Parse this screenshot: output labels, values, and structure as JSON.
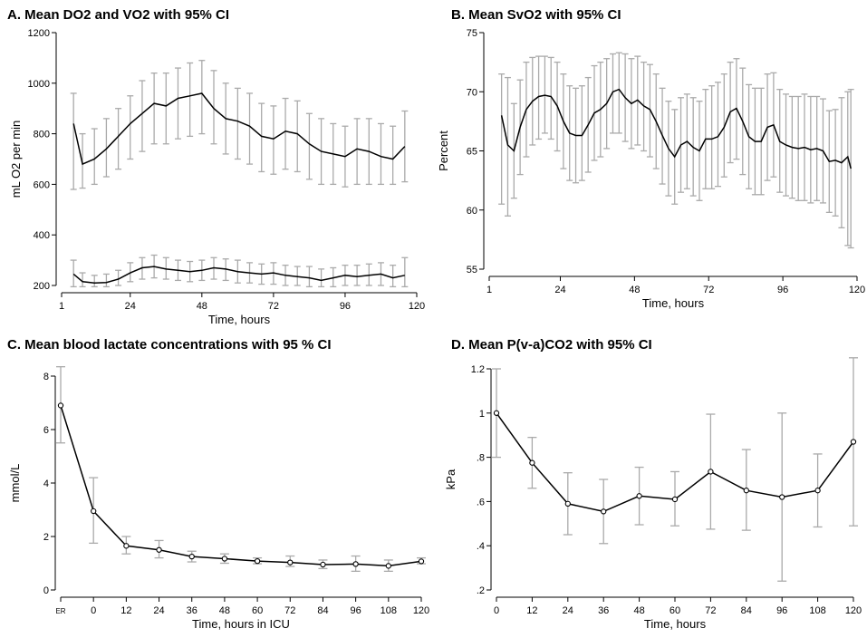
{
  "panels": {
    "a": {
      "title": "A. Mean DO2 and VO2 with 95% CI"
    },
    "b": {
      "title": "B. Mean SvO2 with 95% CI"
    },
    "c": {
      "title": "C. Mean blood lactate concentrations with 95 % CI"
    },
    "d": {
      "title": "D. Mean P(v-a)CO2 with 95% CI"
    }
  },
  "chart_data": [
    {
      "id": "a",
      "type": "line",
      "title": "A. Mean DO2 and VO2 with 95% CI",
      "xlabel": "Time, hours",
      "ylabel": "mL O2 per min",
      "xlim": [
        1,
        120
      ],
      "ylim": [
        200,
        1200
      ],
      "xticks": [
        1,
        24,
        48,
        72,
        96,
        120
      ],
      "yticks": [
        200,
        400,
        600,
        800,
        1000,
        1200
      ],
      "grid": false,
      "series": [
        {
          "x": [
            5,
            8,
            12,
            16,
            20,
            24,
            28,
            32,
            36,
            40,
            44,
            48,
            52,
            56,
            60,
            64,
            68,
            72,
            76,
            80,
            84,
            88,
            92,
            96,
            100,
            104,
            108,
            112,
            116
          ],
          "y": [
            840,
            680,
            700,
            740,
            790,
            840,
            880,
            920,
            910,
            940,
            950,
            960,
            900,
            860,
            850,
            830,
            790,
            780,
            810,
            800,
            760,
            730,
            720,
            710,
            740,
            730,
            710,
            700,
            750
          ],
          "lower": [
            580,
            585,
            600,
            630,
            660,
            700,
            730,
            760,
            760,
            780,
            790,
            800,
            760,
            720,
            700,
            680,
            650,
            640,
            660,
            650,
            620,
            600,
            600,
            590,
            600,
            600,
            600,
            600,
            610
          ],
          "upper": [
            960,
            800,
            820,
            860,
            900,
            950,
            1010,
            1040,
            1040,
            1060,
            1080,
            1090,
            1050,
            1000,
            980,
            960,
            920,
            910,
            940,
            930,
            880,
            860,
            840,
            830,
            860,
            860,
            840,
            830,
            890
          ]
        },
        {
          "x": [
            5,
            8,
            12,
            16,
            20,
            24,
            28,
            32,
            36,
            40,
            44,
            48,
            52,
            56,
            60,
            64,
            68,
            72,
            76,
            80,
            84,
            88,
            92,
            96,
            100,
            104,
            108,
            112,
            116
          ],
          "y": [
            245,
            215,
            210,
            212,
            225,
            250,
            270,
            275,
            265,
            260,
            255,
            260,
            270,
            265,
            255,
            250,
            245,
            250,
            240,
            235,
            230,
            220,
            230,
            240,
            235,
            240,
            245,
            230,
            240
          ],
          "lower": [
            195,
            195,
            195,
            195,
            200,
            215,
            225,
            230,
            225,
            220,
            215,
            220,
            225,
            220,
            210,
            210,
            205,
            205,
            200,
            200,
            195,
            195,
            195,
            200,
            200,
            200,
            200,
            195,
            195
          ],
          "upper": [
            300,
            250,
            240,
            245,
            260,
            290,
            310,
            320,
            310,
            300,
            295,
            300,
            310,
            305,
            300,
            290,
            285,
            290,
            280,
            275,
            275,
            265,
            270,
            280,
            280,
            285,
            290,
            280,
            310
          ]
        }
      ]
    },
    {
      "id": "b",
      "type": "line",
      "title": "B. Mean SvO2 with 95% CI",
      "xlabel": "Time, hours",
      "ylabel": "Percent",
      "xlim": [
        1,
        120
      ],
      "ylim": [
        55,
        75
      ],
      "xticks": [
        1,
        24,
        48,
        72,
        96,
        120
      ],
      "yticks": [
        55,
        60,
        65,
        70,
        75
      ],
      "grid": false,
      "series": [
        {
          "x": [
            5,
            7,
            9,
            11,
            13,
            15,
            17,
            19,
            21,
            23,
            25,
            27,
            29,
            31,
            33,
            35,
            37,
            39,
            41,
            43,
            45,
            47,
            49,
            51,
            53,
            55,
            57,
            59,
            61,
            63,
            65,
            67,
            69,
            71,
            73,
            75,
            77,
            79,
            81,
            83,
            85,
            87,
            89,
            91,
            93,
            95,
            97,
            99,
            101,
            103,
            105,
            107,
            109,
            111,
            113,
            115,
            117,
            118
          ],
          "y": [
            68,
            65.5,
            65,
            67,
            68.5,
            69.2,
            69.6,
            69.7,
            69.6,
            68.8,
            67.5,
            66.5,
            66.3,
            66.3,
            67.2,
            68.2,
            68.5,
            69,
            70,
            70.2,
            69.5,
            69,
            69.3,
            68.8,
            68.5,
            67.5,
            66.3,
            65.2,
            64.5,
            65.5,
            65.8,
            65.3,
            65,
            66,
            66,
            66.2,
            67,
            68.3,
            68.6,
            67.5,
            66.2,
            65.8,
            65.8,
            67,
            67.2,
            65.8,
            65.5,
            65.3,
            65.2,
            65.3,
            65.1,
            65.2,
            65,
            64.1,
            64.2,
            64,
            64.5,
            63.5
          ],
          "lower": [
            60.5,
            59.5,
            61,
            63,
            64.5,
            65.5,
            66,
            66.5,
            66,
            65,
            63.5,
            62.5,
            62.3,
            62.5,
            63.2,
            64.2,
            64.5,
            65.2,
            66.5,
            66.5,
            65.8,
            65.2,
            65.5,
            65,
            64.5,
            63.5,
            62.2,
            61.2,
            60.5,
            61.5,
            61.8,
            61.2,
            60.8,
            61.8,
            61.8,
            62,
            62.8,
            64,
            64.3,
            63,
            61.8,
            61.3,
            61.3,
            62.5,
            62.8,
            61.5,
            61.2,
            61,
            60.8,
            60.8,
            60.6,
            60.8,
            60.6,
            59.8,
            59.5,
            58.5,
            57,
            56.8
          ],
          "upper": [
            71.5,
            71.2,
            69,
            71,
            72.5,
            72.9,
            73,
            73,
            72.9,
            72.5,
            71.5,
            70.5,
            70.3,
            70.5,
            71.2,
            72.2,
            72.5,
            72.8,
            73.2,
            73.3,
            73.2,
            72.8,
            73,
            72.5,
            72.3,
            71.5,
            70.3,
            69.2,
            68.5,
            69.5,
            69.8,
            69.5,
            69.2,
            70.2,
            70.5,
            70.8,
            71.5,
            72.5,
            72.8,
            72,
            70.6,
            70.3,
            70.3,
            71.5,
            71.6,
            70.2,
            69.8,
            69.6,
            69.6,
            69.8,
            69.6,
            69.6,
            69.4,
            68.4,
            68.5,
            69.5,
            70,
            70.2
          ]
        }
      ]
    },
    {
      "id": "c",
      "type": "line",
      "title": "C. Mean blood lactate concentrations with 95 % CI",
      "xlabel": "Time, hours in ICU",
      "ylabel": "mmol/L",
      "categories": [
        "ER",
        "0",
        "12",
        "24",
        "36",
        "48",
        "60",
        "72",
        "84",
        "96",
        "108",
        "120"
      ],
      "ylim": [
        0,
        8
      ],
      "yticks": [
        0,
        2,
        4,
        6,
        8
      ],
      "grid": false,
      "series": [
        {
          "values": [
            6.9,
            2.95,
            1.65,
            1.5,
            1.25,
            1.17,
            1.08,
            1.03,
            0.95,
            0.97,
            0.9,
            1.07
          ],
          "lower": [
            5.5,
            1.75,
            1.35,
            1.2,
            1.05,
            1.0,
            0.98,
            0.88,
            0.8,
            0.7,
            0.7,
            0.98
          ],
          "upper": [
            8.35,
            4.2,
            2.0,
            1.85,
            1.45,
            1.35,
            1.2,
            1.27,
            1.12,
            1.27,
            1.12,
            1.2
          ]
        }
      ]
    },
    {
      "id": "d",
      "type": "line",
      "title": "D. Mean P(v-a)CO2 with 95% CI",
      "xlabel": "Time, hours",
      "ylabel": "kPa",
      "categories": [
        "0",
        "12",
        "24",
        "36",
        "48",
        "60",
        "72",
        "84",
        "96",
        "108",
        "120"
      ],
      "ylim": [
        0.2,
        1.2
      ],
      "yticks": [
        0.2,
        0.4,
        0.6,
        0.8,
        1.0,
        1.2
      ],
      "ytick_labels": [
        ".2",
        ".4",
        ".6",
        ".8",
        "1",
        "1.2"
      ],
      "grid": false,
      "series": [
        {
          "values": [
            1.0,
            0.775,
            0.59,
            0.555,
            0.625,
            0.61,
            0.735,
            0.65,
            0.62,
            0.65,
            0.87
          ],
          "lower": [
            0.8,
            0.66,
            0.45,
            0.41,
            0.495,
            0.49,
            0.475,
            0.47,
            0.24,
            0.485,
            0.49
          ],
          "upper": [
            1.2,
            0.89,
            0.73,
            0.7,
            0.755,
            0.735,
            0.995,
            0.835,
            1.0,
            0.815,
            1.25
          ]
        }
      ]
    }
  ]
}
